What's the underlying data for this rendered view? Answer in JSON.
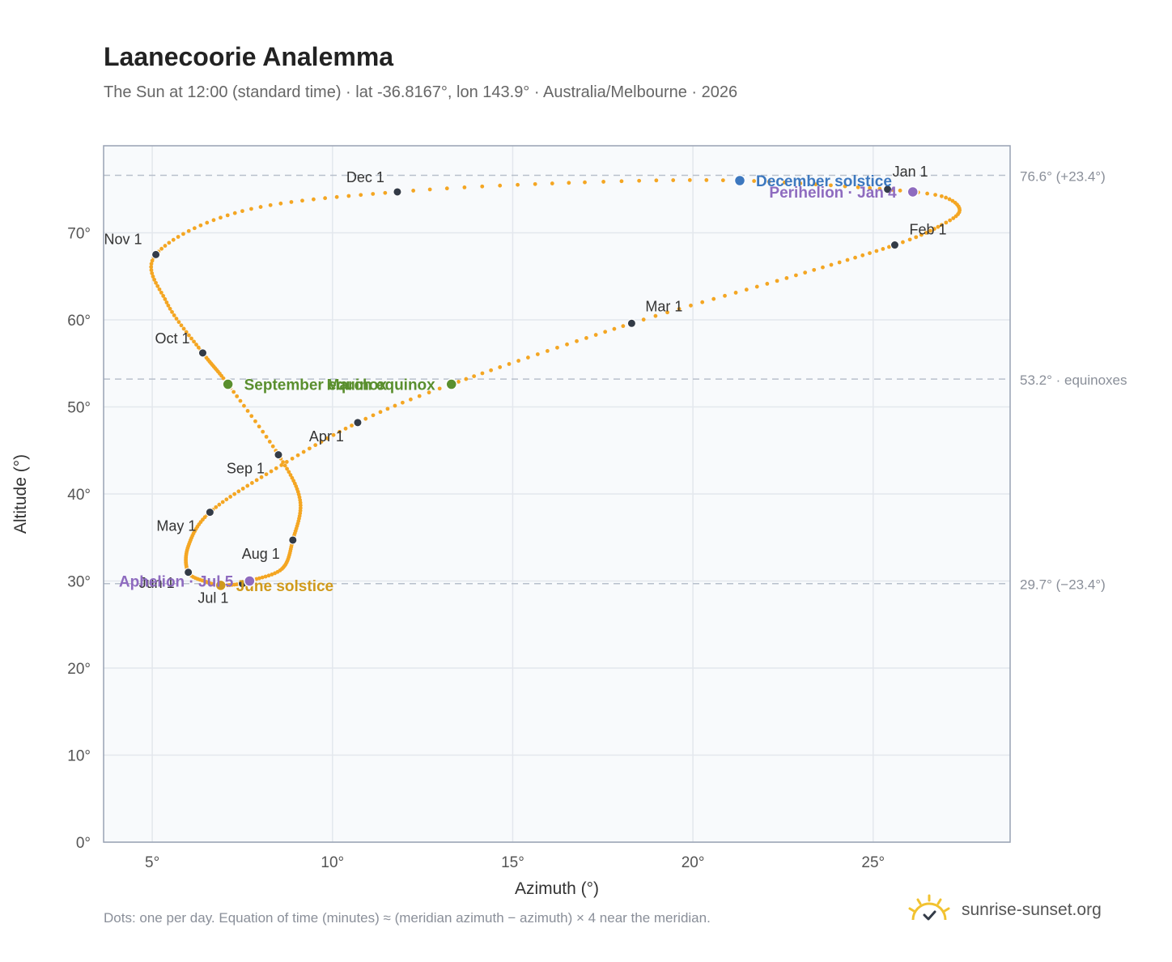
{
  "header": {
    "title": "Laanecoorie Analemma",
    "subtitle": "The Sun at 12:00 (standard time) · lat -36.8167°, lon 143.9° · Australia/Melbourne · 2026"
  },
  "footer": {
    "note": "Dots: one per day. Equation of time (minutes) ≈ (meridian azimuth − azimuth) × 4 near the meridian.",
    "brand": "sunrise-sunset.org"
  },
  "colors": {
    "curve": "#f4a623",
    "month_marker": "#333b47",
    "equinox": "#5a8f2e",
    "june_solstice": "#d09a1c",
    "december_solstice": "#3d78bf",
    "apsis": "#8e6bbf",
    "reference_line": "#b8c0cc",
    "plot_bg": "#f8fafc",
    "grid": "#e3e7ed",
    "frame": "#98a2b3"
  },
  "chart_data": {
    "type": "scatter",
    "xlabel": "Azimuth (°)",
    "ylabel": "Altitude (°)",
    "xlim": [
      3.65,
      28.8
    ],
    "ylim": [
      0,
      80
    ],
    "x_ticks": [
      5,
      10,
      15,
      20,
      25
    ],
    "x_tick_labels": [
      "5°",
      "10°",
      "15°",
      "20°",
      "25°"
    ],
    "y_ticks": [
      0,
      10,
      20,
      30,
      40,
      50,
      60,
      70
    ],
    "y_tick_labels": [
      "0°",
      "10°",
      "20°",
      "30°",
      "40°",
      "50°",
      "60°",
      "70°"
    ],
    "grid": true,
    "reference_lines": [
      {
        "y": 76.6,
        "label": "76.6° (+23.4°)"
      },
      {
        "y": 53.2,
        "label": "53.2° · equinoxes"
      },
      {
        "y": 29.7,
        "label": "29.7° (−23.4°)"
      }
    ],
    "path_anchors": [
      {
        "doy": 0,
        "az": 25.4,
        "alt": 75.0
      },
      {
        "doy": 7,
        "az": 26.9,
        "alt": 74.2
      },
      {
        "doy": 15,
        "az": 27.4,
        "alt": 72.6
      },
      {
        "doy": 22,
        "az": 26.9,
        "alt": 70.9
      },
      {
        "doy": 31,
        "az": 25.6,
        "alt": 68.6
      },
      {
        "doy": 45,
        "az": 22.6,
        "alt": 64.8
      },
      {
        "doy": 59,
        "az": 18.3,
        "alt": 59.6
      },
      {
        "doy": 79,
        "az": 13.3,
        "alt": 52.6
      },
      {
        "doy": 90,
        "az": 10.7,
        "alt": 48.2
      },
      {
        "doy": 105,
        "az": 8.3,
        "alt": 42.6
      },
      {
        "doy": 120,
        "az": 6.6,
        "alt": 37.9
      },
      {
        "doy": 135,
        "az": 6.0,
        "alt": 34.0
      },
      {
        "doy": 151,
        "az": 6.0,
        "alt": 31.0
      },
      {
        "doy": 160,
        "az": 6.5,
        "alt": 29.9
      },
      {
        "doy": 171,
        "az": 6.9,
        "alt": 29.5
      },
      {
        "doy": 181,
        "az": 7.5,
        "alt": 29.7
      },
      {
        "doy": 185,
        "az": 7.7,
        "alt": 30.0
      },
      {
        "doy": 197,
        "az": 8.6,
        "alt": 31.4
      },
      {
        "doy": 212,
        "az": 8.9,
        "alt": 34.7
      },
      {
        "doy": 228,
        "az": 9.1,
        "alt": 39.3
      },
      {
        "doy": 243,
        "az": 8.5,
        "alt": 44.5
      },
      {
        "doy": 258,
        "az": 7.1,
        "alt": 52.6
      },
      {
        "doy": 273,
        "az": 6.4,
        "alt": 56.2
      },
      {
        "doy": 289,
        "az": 5.4,
        "alt": 62.0
      },
      {
        "doy": 304,
        "az": 5.1,
        "alt": 67.5
      },
      {
        "doy": 320,
        "az": 7.5,
        "alt": 72.5
      },
      {
        "doy": 334,
        "az": 11.8,
        "alt": 74.7
      },
      {
        "doy": 345,
        "az": 17.0,
        "alt": 75.8
      },
      {
        "doy": 354,
        "az": 21.3,
        "alt": 76.0
      },
      {
        "doy": 365,
        "az": 25.4,
        "alt": 75.0
      }
    ],
    "month_markers": [
      {
        "label": "Jan 1",
        "az": 25.4,
        "alt": 75.0,
        "anchor": "start",
        "dx": 6,
        "dy": -16
      },
      {
        "label": "Feb 1",
        "az": 25.6,
        "alt": 68.6,
        "anchor": "start",
        "dx": 18,
        "dy": -13
      },
      {
        "label": "Mar 1",
        "az": 18.3,
        "alt": 59.6,
        "anchor": "start",
        "dx": 17,
        "dy": -15
      },
      {
        "label": "Apr 1",
        "az": 10.7,
        "alt": 48.2,
        "anchor": "end",
        "dx": -17,
        "dy": 23
      },
      {
        "label": "May 1",
        "az": 6.6,
        "alt": 37.9,
        "anchor": "end",
        "dx": -17,
        "dy": 23
      },
      {
        "label": "Jun 1",
        "az": 6.0,
        "alt": 31.0,
        "anchor": "end",
        "dx": -17,
        "dy": 19
      },
      {
        "label": "Jul 1",
        "az": 7.5,
        "alt": 29.7,
        "anchor": "end",
        "dx": -17,
        "dy": 24
      },
      {
        "label": "Aug 1",
        "az": 8.9,
        "alt": 34.7,
        "anchor": "end",
        "dx": -16,
        "dy": 23
      },
      {
        "label": "Sep 1",
        "az": 8.5,
        "alt": 44.5,
        "anchor": "end",
        "dx": -17,
        "dy": 23
      },
      {
        "label": "Oct 1",
        "az": 6.4,
        "alt": 56.2,
        "anchor": "end",
        "dx": -16,
        "dy": -12
      },
      {
        "label": "Nov 1",
        "az": 5.1,
        "alt": 67.5,
        "anchor": "end",
        "dx": -17,
        "dy": -13
      },
      {
        "label": "Dec 1",
        "az": 11.8,
        "alt": 74.7,
        "anchor": "end",
        "dx": -16,
        "dy": -12
      }
    ],
    "events": [
      {
        "label": "June solstice",
        "kind": "june_solstice",
        "az": 6.9,
        "alt": 29.5,
        "anchor": "start",
        "dx": 19,
        "dy": 7
      },
      {
        "label": "December solstice",
        "kind": "december_solstice",
        "az": 21.3,
        "alt": 76.0,
        "anchor": "start",
        "dx": 20,
        "dy": 7
      },
      {
        "label": "March equinox",
        "kind": "equinox",
        "az": 13.3,
        "alt": 52.6,
        "anchor": "end",
        "dx": -20,
        "dy": 7
      },
      {
        "label": "September equinox",
        "kind": "equinox",
        "az": 7.1,
        "alt": 52.6,
        "anchor": "start",
        "dx": 20,
        "dy": 7
      },
      {
        "label": "Perihelion · Jan 4",
        "kind": "apsis",
        "az": 26.1,
        "alt": 74.7,
        "anchor": "end",
        "dx": -20,
        "dy": 7
      },
      {
        "label": "Aphelion · Jul 5",
        "kind": "apsis",
        "az": 7.7,
        "alt": 30.0,
        "anchor": "end",
        "dx": -20,
        "dy": 7
      }
    ]
  }
}
